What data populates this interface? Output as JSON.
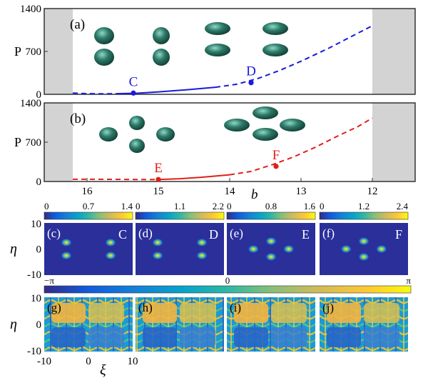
{
  "chart_data": [
    {
      "type": "line",
      "panel_label": "(a)",
      "ylabel": "P",
      "y_ticks": [
        "0",
        "700",
        "1400"
      ],
      "ylim": [
        0,
        1400
      ],
      "xlim": [
        16.6,
        11.4
      ],
      "x_reversed": true,
      "shaded_x_ranges": [
        [
          16.6,
          16.2
        ],
        [
          12.0,
          11.4
        ]
      ],
      "color": "#1a1adb",
      "series": [
        {
          "style": "dashed",
          "x": [
            16.2,
            16.0,
            15.8,
            15.6
          ],
          "y": [
            20,
            12,
            8,
            10
          ]
        },
        {
          "style": "solid",
          "x": [
            15.6,
            15.3,
            15.0,
            14.6,
            14.2
          ],
          "y": [
            10,
            18,
            40,
            75,
            115
          ]
        },
        {
          "style": "dashed",
          "x": [
            14.2,
            13.9,
            13.6,
            13.3,
            13.0,
            12.6,
            12.3,
            12.0
          ],
          "y": [
            115,
            165,
            260,
            390,
            540,
            760,
            940,
            1120
          ]
        }
      ],
      "points": [
        {
          "label": "C",
          "x": 15.35,
          "y": 20
        },
        {
          "label": "D",
          "x": 13.7,
          "y": 190
        }
      ]
    },
    {
      "type": "line",
      "panel_label": "(b)",
      "ylabel": "P",
      "xlabel": "b",
      "x_ticks": [
        "16",
        "15",
        "14",
        "13",
        "12"
      ],
      "y_ticks": [
        "0",
        "700",
        "1400"
      ],
      "ylim": [
        0,
        1400
      ],
      "xlim": [
        16.6,
        11.4
      ],
      "x_reversed": true,
      "shaded_x_ranges": [
        [
          16.6,
          16.2
        ],
        [
          12.0,
          11.4
        ]
      ],
      "color": "#e0201a",
      "series": [
        {
          "style": "dashed",
          "x": [
            16.2,
            15.9,
            15.6,
            15.3,
            15.0
          ],
          "y": [
            40,
            40,
            38,
            36,
            36
          ]
        },
        {
          "style": "solid",
          "x": [
            15.0,
            14.7,
            14.4,
            14.0
          ],
          "y": [
            36,
            50,
            75,
            120
          ]
        },
        {
          "style": "dashed",
          "x": [
            14.0,
            13.7,
            13.4,
            13.1,
            12.8,
            12.5,
            12.2,
            12.0
          ],
          "y": [
            120,
            180,
            300,
            440,
            610,
            800,
            980,
            1130
          ]
        }
      ],
      "points": [
        {
          "label": "E",
          "x": 15.0,
          "y": 36
        },
        {
          "label": "F",
          "x": 13.35,
          "y": 270
        }
      ]
    },
    {
      "type": "heatmap",
      "panels": [
        {
          "label": "(c)",
          "tag": "C",
          "colorbar_ticks": [
            "0",
            "0.7",
            "1.4"
          ],
          "peaks": [
            [
              -5,
              2.5
            ],
            [
              5,
              2.5
            ],
            [
              -5,
              -2.5
            ],
            [
              5,
              -2.5
            ]
          ]
        },
        {
          "label": "(d)",
          "tag": "D",
          "colorbar_ticks": [
            "0",
            "1.1",
            "2.2"
          ],
          "peaks": [
            [
              -5,
              2.5
            ],
            [
              5,
              2.5
            ],
            [
              -5,
              -2.5
            ],
            [
              5,
              -2.5
            ]
          ]
        },
        {
          "label": "(e)",
          "tag": "E",
          "colorbar_ticks": [
            "0",
            "0.8",
            "1.6"
          ],
          "peaks": [
            [
              0,
              3
            ],
            [
              -4,
              0
            ],
            [
              4,
              0
            ],
            [
              0,
              -3
            ]
          ]
        },
        {
          "label": "(f)",
          "tag": "F",
          "colorbar_ticks": [
            "0",
            "1.2",
            "2.4"
          ],
          "peaks": [
            [
              0,
              3
            ],
            [
              -4,
              0
            ],
            [
              4,
              0
            ],
            [
              0,
              -3
            ]
          ]
        }
      ],
      "ylabel": "η",
      "y_ticks": [
        "10",
        "0",
        "-10"
      ],
      "ylim": [
        -10,
        10
      ],
      "xlim": [
        -10,
        10
      ]
    },
    {
      "type": "heatmap",
      "panels": [
        {
          "label": "(g)"
        },
        {
          "label": "(h)"
        },
        {
          "label": "(i)"
        },
        {
          "label": "(j)"
        }
      ],
      "colorbar_ticks": [
        "−π",
        "0",
        "π"
      ],
      "ylabel": "η",
      "xlabel": "ξ",
      "y_ticks": [
        "10",
        "0",
        "-10"
      ],
      "x_ticks": [
        "-10",
        "0",
        "10"
      ],
      "ylim": [
        -10,
        10
      ],
      "xlim": [
        -10,
        10
      ]
    }
  ],
  "colors": {
    "shade": "#d3d3d3",
    "soliton": "#2e7a6a",
    "density_bg": "#2a2f9a",
    "parula": [
      "#352a87",
      "#0f5cdd",
      "#1481d6",
      "#06a4ca",
      "#2eb7a4",
      "#87bf77",
      "#d1bb59",
      "#fec832",
      "#f9fb0e"
    ]
  }
}
